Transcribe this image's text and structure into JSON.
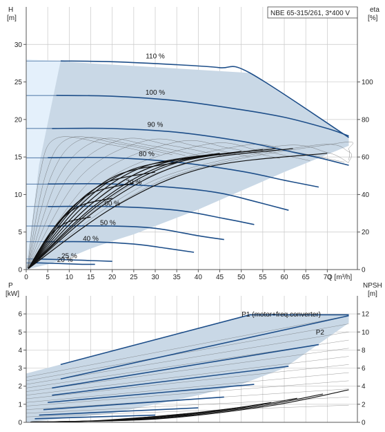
{
  "chart_data": [
    {
      "type": "line",
      "title": "NBE 65-315/261, 3*400 V",
      "xlabel": "Q [m³/h]",
      "ylabel": "H [m]",
      "y2label": "eta [%]",
      "ylabel_top": "H",
      "ylabel_unit": "[m]",
      "y2label_top": "eta",
      "y2label_unit": "[%]",
      "xlim": [
        0,
        77
      ],
      "ylim": [
        0,
        35
      ],
      "y2lim": [
        0,
        140
      ],
      "x_ticks": [
        0,
        5,
        10,
        15,
        20,
        25,
        30,
        35,
        40,
        45,
        50,
        55,
        60,
        65,
        70
      ],
      "y_ticks": [
        0,
        5,
        10,
        15,
        20,
        25,
        30
      ],
      "y2_ticks": [
        0,
        20,
        40,
        60,
        80,
        100
      ],
      "grid": true,
      "operating_area": {
        "x": [
          0,
          0,
          52,
          75,
          75,
          60,
          50,
          40,
          30,
          25,
          20,
          15,
          10,
          5,
          0
        ],
        "y": [
          0,
          28,
          26.2,
          17.6,
          16.5,
          13,
          10.5,
          8,
          5.8,
          4.7,
          3.8,
          2.8,
          1.6,
          0.7,
          0
        ]
      },
      "series": [
        {
          "name": "110 %",
          "x": [
            8,
            20,
            35,
            45,
            52,
            75
          ],
          "y": [
            27.8,
            27.7,
            27.3,
            26.9,
            26.2,
            17.6
          ]
        },
        {
          "name": "100 %",
          "x": [
            7,
            20,
            35,
            50,
            60,
            70,
            75
          ],
          "y": [
            23.2,
            23.1,
            22.5,
            21.3,
            20.3,
            18.8,
            17.8
          ]
        },
        {
          "name": "90 %",
          "x": [
            6,
            20,
            35,
            50,
            60,
            68,
            75
          ],
          "y": [
            18.8,
            18.8,
            18.3,
            17.1,
            15.9,
            14.9,
            13.9
          ]
        },
        {
          "name": "80 %",
          "x": [
            5,
            20,
            35,
            50,
            60,
            68
          ],
          "y": [
            14.9,
            14.9,
            14.3,
            13.1,
            11.9,
            11.0
          ]
        },
        {
          "name": "70 %",
          "x": [
            5,
            20,
            35,
            45,
            53,
            61
          ],
          "y": [
            11.4,
            11.4,
            10.9,
            10.2,
            9.1,
            7.9
          ]
        },
        {
          "name": "60 %",
          "x": [
            5,
            20,
            35,
            46,
            53
          ],
          "y": [
            8.4,
            8.4,
            7.9,
            6.8,
            6.0
          ]
        },
        {
          "name": "50 %",
          "x": [
            5,
            20,
            30,
            40,
            46
          ],
          "y": [
            5.8,
            5.8,
            5.5,
            4.5,
            4.0
          ]
        },
        {
          "name": "40 %",
          "x": [
            4,
            15,
            25,
            33,
            39
          ],
          "y": [
            3.7,
            3.7,
            3.4,
            2.8,
            2.3
          ]
        },
        {
          "name": "25 %",
          "x": [
            3,
            10,
            15,
            20
          ],
          "y": [
            1.4,
            1.3,
            1.2,
            1.1
          ]
        },
        {
          "name": "20 %",
          "x": [
            2,
            8,
            13,
            16
          ],
          "y": [
            0.9,
            0.8,
            0.7,
            0.7
          ]
        }
      ],
      "annotations": [
        "110 %",
        "100 %",
        "90 %",
        "80 %",
        "70 %",
        "60 %",
        "50 %",
        "40 %",
        "25 %",
        "20 %"
      ]
    },
    {
      "type": "line",
      "xlabel": "",
      "ylabel": "P [kW]",
      "y2label": "NPSH [m]",
      "ylabel_top": "P",
      "ylabel_unit": "[kW]",
      "y2label_top": "NPSH",
      "y2label_unit": "[m]",
      "xlim": [
        0,
        77
      ],
      "ylim": [
        0,
        7
      ],
      "y2lim": [
        0,
        14
      ],
      "y_ticks": [
        0,
        1,
        2,
        3,
        4,
        5,
        6
      ],
      "y2_ticks": [
        0,
        2,
        4,
        6,
        8,
        10,
        12
      ],
      "grid": true,
      "operating_area": {
        "x": [
          0,
          0,
          52,
          75,
          75,
          60,
          50,
          40,
          30,
          20,
          10,
          0
        ],
        "y": [
          0,
          2.7,
          5.95,
          5.95,
          5.5,
          3.0,
          2.1,
          1.5,
          1.0,
          0.5,
          0.25,
          0
        ]
      },
      "series": [
        {
          "name": "P1 (motor+freq.converter)",
          "x": [
            8,
            52,
            75
          ],
          "y": [
            3.2,
            5.95,
            5.95
          ]
        },
        {
          "name": "P2",
          "x": [
            8,
            52,
            75
          ],
          "y": [
            2.7,
            5.0,
            5.5
          ]
        },
        {
          "name": "NPSH",
          "x": [
            0,
            20,
            40,
            55,
            65,
            75
          ],
          "y": [
            0.0,
            0.1,
            0.5,
            1.1,
            1.6,
            1.8
          ]
        }
      ],
      "annotations": [
        "P1 (motor+freq.converter)",
        "P2"
      ]
    }
  ]
}
